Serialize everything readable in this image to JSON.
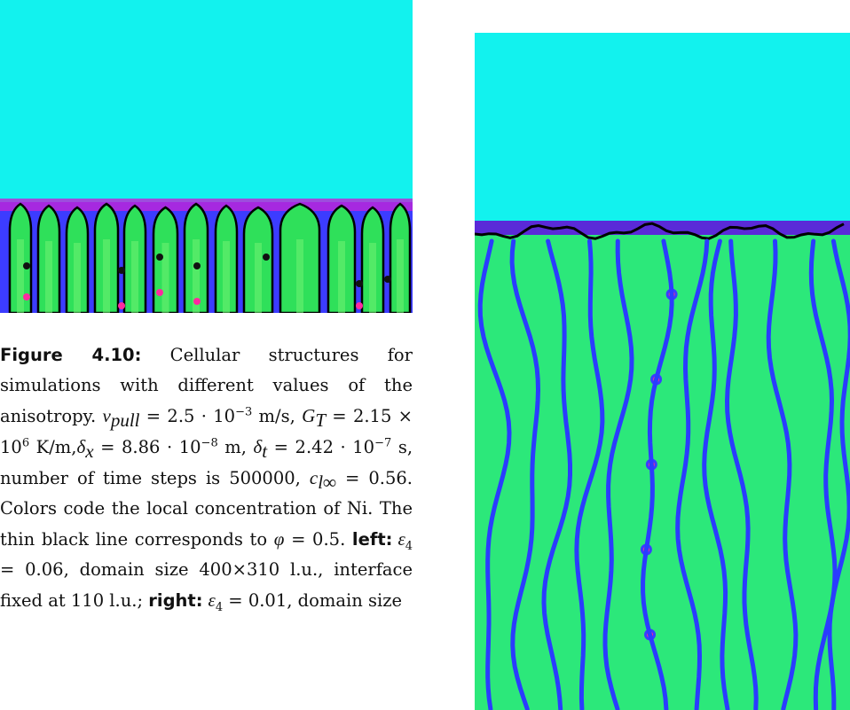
{
  "caption": {
    "segments": [
      "Figure 4.10:",
      " Cellular structures for simulations with different values of the anisotropy. ",
      "v",
      "pull",
      " = 2.5 · 10",
      "−3",
      " m/s, ",
      "G",
      "T",
      " = 2.15 × 10",
      "6",
      " K/m,",
      "δ",
      "x",
      " = 8.86 · 10",
      "−8",
      " m, ",
      "δ",
      "t",
      " = 2.42 · 10",
      "−7",
      " s, number of time steps is 500000, ",
      "c",
      "l∞",
      " = 0.56. Colors code the local concentration of Ni. The thin black line corresponds to ",
      "φ",
      " = 0.5. ",
      "left:",
      "ε",
      "4",
      " = 0.06, domain size 400×310 l.u., interface fixed at 110 l.u.; ",
      "right:",
      "ε",
      "4",
      " = 0.01, domain size"
    ]
  }
}
